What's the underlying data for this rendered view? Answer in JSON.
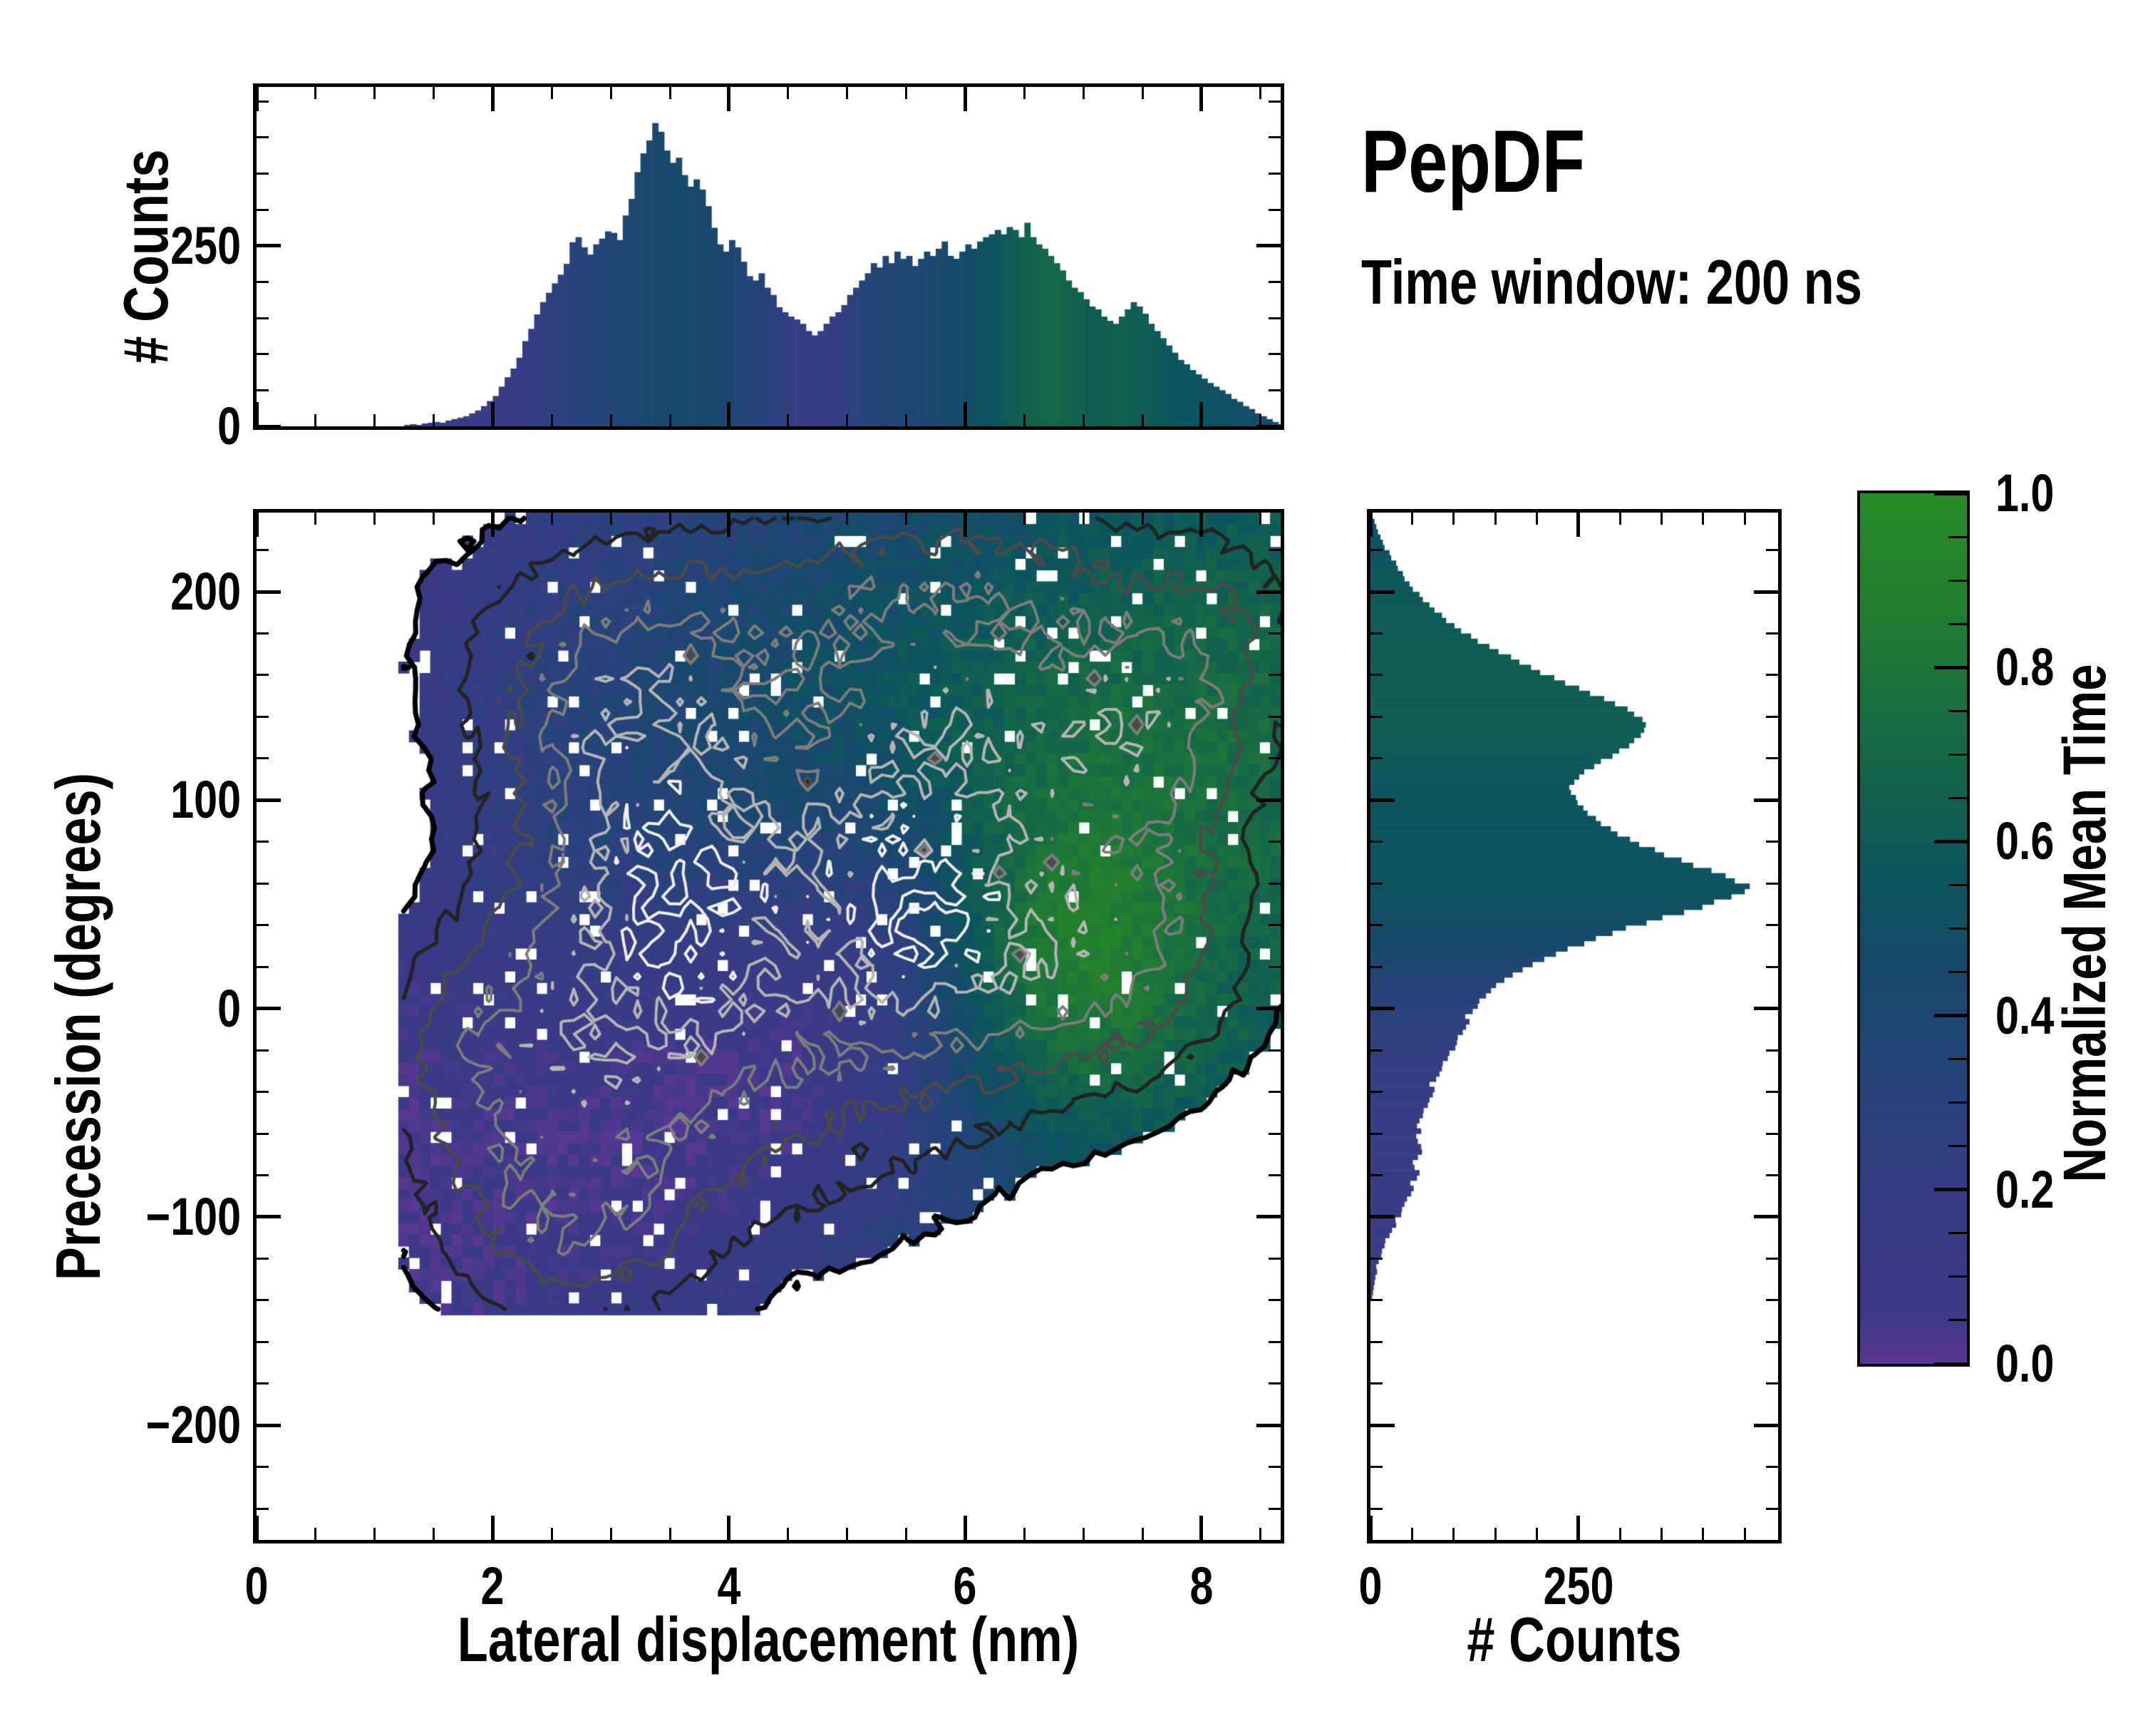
{
  "title": "PepDF",
  "subtitle": "Time window: 200 ns",
  "labels": {
    "top_counts": "# Counts",
    "precession": "Precession (degrees)",
    "lateral": "Lateral displacement (nm)",
    "right_counts": "# Counts",
    "colorbar": "Normalized Mean Time"
  },
  "colormap": {
    "stops": [
      [
        0,
        "#5b3795"
      ],
      [
        0.06,
        "#3d3888"
      ],
      [
        0.2,
        "#353d83"
      ],
      [
        0.32,
        "#27437b"
      ],
      [
        0.45,
        "#17496c"
      ],
      [
        0.55,
        "#0d545f"
      ],
      [
        0.65,
        "#11614f"
      ],
      [
        0.78,
        "#1c733c"
      ],
      [
        0.9,
        "#23822d"
      ],
      [
        1,
        "#278c26"
      ]
    ]
  },
  "axes": {
    "main": {
      "xlim": [
        0,
        8.67
      ],
      "ylim": [
        -255,
        238
      ],
      "x_major": [
        0,
        2,
        4,
        6,
        8
      ],
      "x_major_labels": [
        "0",
        "2",
        "4",
        "6",
        "8"
      ],
      "x_minor_step": 0.5,
      "y_major": [
        200,
        100,
        0,
        -100,
        -200
      ],
      "y_major_labels": [
        "200",
        "100",
        "0",
        "−100",
        "−200"
      ],
      "y_minor_step": 20
    },
    "top": {
      "ylim": [
        0,
        470
      ],
      "y_major": [
        0,
        250
      ],
      "y_major_labels": [
        "0",
        "250"
      ],
      "y_minor_step": 50
    },
    "right": {
      "xlim": [
        0,
        490
      ],
      "x_major": [
        0,
        250
      ],
      "x_major_labels": [
        "0",
        "250"
      ],
      "x_minor_step": 50
    },
    "colorbar": {
      "lim": [
        0,
        1
      ],
      "major": [
        0,
        0.2,
        0.4,
        0.6,
        0.8,
        1
      ],
      "major_labels": [
        "0.0",
        "0.2",
        "0.4",
        "0.6",
        "0.8",
        "1.0"
      ],
      "minor_step": 0.05
    }
  },
  "chart_data": [
    {
      "type": "bar",
      "name": "lateral_displacement_histogram",
      "ylabel": "# Counts",
      "x_start": 1.25,
      "x_step": 0.05,
      "xlim": [
        0,
        8.67
      ],
      "ylim": [
        0,
        470
      ],
      "yticks": [
        0,
        250
      ],
      "values": [
        2,
        3,
        2,
        4,
        5,
        6,
        5,
        8,
        10,
        12,
        14,
        18,
        22,
        28,
        35,
        42,
        55,
        68,
        80,
        95,
        118,
        135,
        155,
        172,
        185,
        198,
        210,
        225,
        255,
        262,
        248,
        238,
        252,
        260,
        270,
        268,
        258,
        292,
        315,
        352,
        378,
        396,
        420,
        408,
        382,
        365,
        372,
        348,
        332,
        342,
        328,
        305,
        275,
        252,
        242,
        258,
        248,
        228,
        208,
        202,
        212,
        192,
        182,
        165,
        158,
        152,
        148,
        142,
        132,
        126,
        132,
        142,
        152,
        158,
        168,
        182,
        192,
        202,
        212,
        226,
        220,
        236,
        226,
        242,
        232,
        236,
        222,
        232,
        242,
        236,
        246,
        256,
        236,
        232,
        242,
        252,
        246,
        256,
        262,
        266,
        272,
        266,
        276,
        272,
        262,
        282,
        262,
        252,
        246,
        236,
        226,
        216,
        202,
        192,
        186,
        176,
        166,
        162,
        152,
        146,
        142,
        152,
        162,
        172,
        166,
        156,
        142,
        132,
        122,
        112,
        102,
        92,
        86,
        78,
        72,
        66,
        60,
        55,
        50,
        45,
        38,
        34,
        28,
        24,
        18,
        14,
        10,
        6,
        3
      ],
      "mean_time": [
        0.12,
        0.13,
        0.11,
        0.12,
        0.14,
        0.12,
        0.13,
        0.12,
        0.14,
        0.13,
        0.12,
        0.14,
        0.15,
        0.13,
        0.14,
        0.15,
        0.16,
        0.15,
        0.17,
        0.18,
        0.19,
        0.2,
        0.22,
        0.21,
        0.23,
        0.25,
        0.26,
        0.28,
        0.3,
        0.31,
        0.32,
        0.33,
        0.35,
        0.34,
        0.36,
        0.38,
        0.37,
        0.39,
        0.4,
        0.41,
        0.42,
        0.43,
        0.42,
        0.44,
        0.45,
        0.44,
        0.46,
        0.45,
        0.44,
        0.45,
        0.44,
        0.43,
        0.42,
        0.4,
        0.41,
        0.39,
        0.38,
        0.36,
        0.35,
        0.34,
        0.32,
        0.3,
        0.28,
        0.26,
        0.24,
        0.22,
        0.21,
        0.19,
        0.18,
        0.17,
        0.18,
        0.19,
        0.2,
        0.22,
        0.24,
        0.27,
        0.29,
        0.31,
        0.33,
        0.35,
        0.36,
        0.37,
        0.36,
        0.38,
        0.37,
        0.39,
        0.38,
        0.4,
        0.41,
        0.4,
        0.42,
        0.43,
        0.44,
        0.46,
        0.47,
        0.49,
        0.5,
        0.52,
        0.53,
        0.55,
        0.57,
        0.59,
        0.61,
        0.63,
        0.64,
        0.66,
        0.67,
        0.68,
        0.69,
        0.7,
        0.69,
        0.68,
        0.67,
        0.66,
        0.64,
        0.63,
        0.62,
        0.61,
        0.62,
        0.63,
        0.64,
        0.65,
        0.64,
        0.63,
        0.62,
        0.61,
        0.6,
        0.59,
        0.58,
        0.57,
        0.56,
        0.55,
        0.55,
        0.54,
        0.53,
        0.53,
        0.52,
        0.52,
        0.51,
        0.51,
        0.5,
        0.5,
        0.5,
        0.49,
        0.49,
        0.48,
        0.48,
        0.48,
        0.47
      ]
    },
    {
      "type": "heatmap",
      "name": "precession_vs_lateral_map",
      "xlabel": "Lateral displacement (nm)",
      "ylabel": "Precession (degrees)",
      "xlim": [
        0,
        8.67
      ],
      "ylim": [
        -255,
        238
      ],
      "xticks": [
        0,
        2,
        4,
        6,
        8
      ],
      "yticks": [
        -200,
        -100,
        0,
        100,
        200
      ],
      "colorbar": {
        "label": "Normalized Mean Time",
        "range": [
          0,
          1
        ],
        "ticks": [
          0.0,
          0.2,
          0.4,
          0.6,
          0.8,
          1.0
        ]
      },
      "grid": {
        "x0": 1.2,
        "dx": 0.09,
        "nx": 84,
        "y_top": 238,
        "dy": 5.5,
        "ny": 70
      },
      "density_blobs": [
        [
          3.5,
          55,
          0.75,
          50,
          1.0
        ],
        [
          5.55,
          60,
          0.8,
          45,
          0.88
        ],
        [
          3.1,
          140,
          0.8,
          42,
          0.72
        ],
        [
          6.0,
          135,
          1.1,
          45,
          0.65
        ],
        [
          7.45,
          140,
          0.55,
          35,
          0.5
        ],
        [
          4.6,
          -15,
          1.3,
          55,
          0.5
        ],
        [
          2.9,
          -65,
          0.9,
          55,
          0.45
        ],
        [
          6.7,
          15,
          0.9,
          38,
          0.5
        ],
        [
          2.2,
          -10,
          0.55,
          50,
          0.38
        ],
        [
          1.6,
          -25,
          0.35,
          35,
          0.25
        ],
        [
          2.6,
          -105,
          0.65,
          30,
          0.33
        ],
        [
          4.3,
          190,
          1.6,
          35,
          0.35
        ],
        [
          7.6,
          55,
          0.6,
          45,
          0.45
        ],
        [
          8.2,
          170,
          0.5,
          40,
          0.35
        ],
        [
          6.3,
          210,
          1.2,
          30,
          0.3
        ]
      ],
      "time_base": {
        "b0": 0.06,
        "kx": 0.52
      },
      "time_blobs": [
        [
          6.85,
          15,
          0.8,
          55,
          0.38
        ],
        [
          7.6,
          120,
          1.2,
          70,
          0.15
        ],
        [
          4.9,
          150,
          2.0,
          70,
          0.18
        ],
        [
          4.6,
          -35,
          1.3,
          55,
          -0.16
        ],
        [
          5.3,
          40,
          0.7,
          45,
          -0.12
        ],
        [
          3.4,
          -70,
          1.6,
          80,
          -0.1
        ],
        [
          2.4,
          60,
          1.2,
          90,
          0.08
        ]
      ],
      "fill_threshold": 0.06,
      "hole_fraction": 0.045,
      "dip_count": 22,
      "seed": 1337,
      "contours": {
        "levels": [
          0.06,
          0.16,
          0.3,
          0.46,
          0.64,
          0.82
        ],
        "colors": [
          "#000000",
          "#222222",
          "#4a4a4a",
          "#7d7d7d",
          "#b5b5b5",
          "#eeeeee"
        ],
        "widths": [
          7,
          5,
          4.5,
          4,
          4,
          4
        ]
      },
      "specks": [
        [
          2.45,
          215
        ],
        [
          3.62,
          233
        ],
        [
          4.4,
          231
        ],
        [
          6.1,
          228
        ],
        [
          7.8,
          205
        ],
        [
          8.5,
          228
        ],
        [
          1.75,
          -25
        ],
        [
          2.0,
          -120
        ],
        [
          3.35,
          -136
        ],
        [
          8.3,
          95
        ],
        [
          7.95,
          20
        ],
        [
          6.55,
          -33
        ],
        [
          5.15,
          232
        ],
        [
          1.45,
          -8
        ]
      ]
    },
    {
      "type": "bar",
      "name": "precession_histogram",
      "xlabel": "# Counts",
      "y_start": -140,
      "y_step": 2.5,
      "xlim": [
        0,
        490
      ],
      "xticks": [
        0,
        250
      ],
      "values": [
        2,
        3,
        4,
        5,
        6,
        8,
        7,
        10,
        13,
        14,
        17,
        18,
        23,
        26,
        31,
        30,
        37,
        38,
        41,
        44,
        49,
        52,
        48,
        56,
        59,
        53,
        51,
        57,
        62,
        61,
        57,
        55,
        61,
        56,
        59,
        63,
        64,
        69,
        71,
        75,
        77,
        71,
        79,
        83,
        86,
        87,
        93,
        95,
        102,
        104,
        105,
        111,
        115,
        119,
        114,
        123,
        129,
        131,
        139,
        145,
        151,
        161,
        171,
        183,
        195,
        209,
        223,
        237,
        257,
        271,
        291,
        307,
        332,
        351,
        377,
        399,
        413,
        434,
        450,
        456,
        438,
        427,
        410,
        388,
        374,
        353,
        342,
        323,
        312,
        297,
        289,
        277,
        271,
        261,
        256,
        249,
        247,
        241,
        239,
        245,
        251,
        257,
        269,
        277,
        291,
        299,
        311,
        317,
        325,
        329,
        331,
        327,
        317,
        309,
        294,
        281,
        264,
        251,
        234,
        221,
        204,
        193,
        179,
        169,
        154,
        143,
        129,
        121,
        109,
        101,
        91,
        86,
        77,
        71,
        63,
        59,
        51,
        47,
        41,
        39,
        33,
        31,
        25,
        23,
        17,
        15,
        12,
        9,
        7,
        5
      ],
      "mean_time": [
        0.12,
        0.13,
        0.14,
        0.13,
        0.12,
        0.14,
        0.13,
        0.15,
        0.14,
        0.13,
        0.14,
        0.15,
        0.14,
        0.13,
        0.15,
        0.14,
        0.16,
        0.15,
        0.14,
        0.15,
        0.16,
        0.15,
        0.14,
        0.16,
        0.15,
        0.17,
        0.16,
        0.15,
        0.16,
        0.17,
        0.16,
        0.17,
        0.18,
        0.17,
        0.18,
        0.19,
        0.18,
        0.19,
        0.2,
        0.19,
        0.2,
        0.21,
        0.2,
        0.22,
        0.21,
        0.22,
        0.23,
        0.22,
        0.24,
        0.23,
        0.24,
        0.25,
        0.26,
        0.25,
        0.27,
        0.28,
        0.29,
        0.3,
        0.31,
        0.32,
        0.33,
        0.35,
        0.36,
        0.38,
        0.39,
        0.41,
        0.42,
        0.44,
        0.45,
        0.46,
        0.47,
        0.48,
        0.49,
        0.5,
        0.51,
        0.52,
        0.52,
        0.53,
        0.53,
        0.54,
        0.54,
        0.53,
        0.54,
        0.53,
        0.54,
        0.54,
        0.55,
        0.54,
        0.55,
        0.54,
        0.55,
        0.54,
        0.55,
        0.55,
        0.56,
        0.55,
        0.56,
        0.56,
        0.57,
        0.56,
        0.57,
        0.58,
        0.58,
        0.59,
        0.59,
        0.6,
        0.6,
        0.61,
        0.61,
        0.62,
        0.62,
        0.62,
        0.63,
        0.62,
        0.63,
        0.63,
        0.62,
        0.63,
        0.62,
        0.63,
        0.63,
        0.62,
        0.63,
        0.62,
        0.62,
        0.61,
        0.62,
        0.61,
        0.6,
        0.61,
        0.6,
        0.6,
        0.59,
        0.6,
        0.59,
        0.58,
        0.59,
        0.58,
        0.57,
        0.58,
        0.57,
        0.56,
        0.57,
        0.56,
        0.55,
        0.55,
        0.54,
        0.54,
        0.53,
        0.52
      ]
    }
  ]
}
